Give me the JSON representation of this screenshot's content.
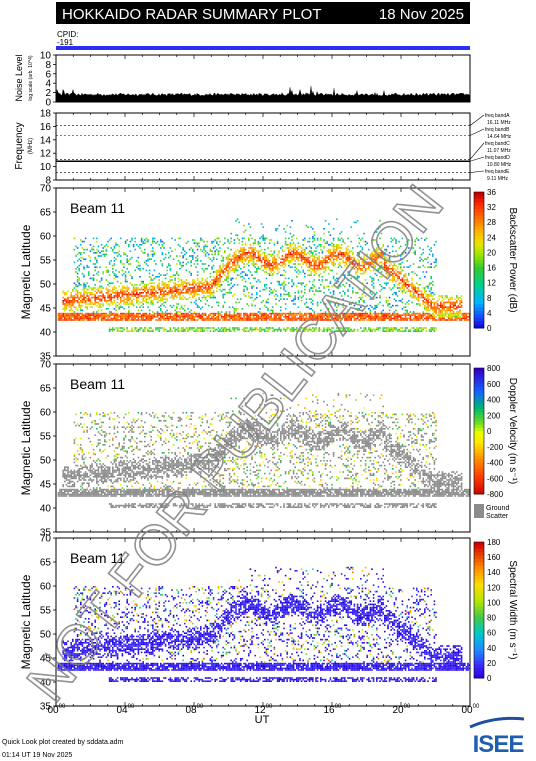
{
  "header": {
    "title": "HOKKAIDO RADAR SUMMARY PLOT",
    "date": "18 Nov 2025",
    "cpid_label": "CPID:",
    "cpid_value": "-191"
  },
  "footer": {
    "line1": "Quick Look plot created by sddata.adm",
    "line2": "01:14 UT 19 Nov 2025",
    "logo_text": "ISEE"
  },
  "watermark": "NOT FOR PUBLICATION",
  "colors": {
    "cpid_bar": "#2e2ef0",
    "ground_scatter": "#8c8c8c",
    "watermark": "#7f7f7f"
  },
  "chart_data": [
    {
      "id": "noise",
      "type": "bar",
      "ylabel": "Noise Level",
      "ylabel_sub": "log scale (arb. 10^4)",
      "ylim": [
        0,
        10
      ],
      "yticks": [
        "10",
        "8",
        "6",
        "4",
        "2",
        "0"
      ],
      "description_levels": {
        "baseline": 1.3,
        "late_peaks": 4.2
      }
    },
    {
      "id": "frequency",
      "type": "line",
      "ylabel": "Frequency",
      "ylabel_sub": "(MHz)",
      "ylim": [
        8,
        18
      ],
      "yticks": [
        "18",
        "16",
        "14",
        "12",
        "10",
        "8"
      ],
      "series": [
        {
          "values": [
            10.8
          ]
        }
      ],
      "bands": [
        {
          "label": "freq bandA",
          "value": "16.11 MHz",
          "y": 16.11
        },
        {
          "label": "freq bandB",
          "value": "14.64 MHz",
          "y": 14.64
        },
        {
          "label": "freq bandC",
          "value": "11.07 MHz",
          "y": 11.07
        },
        {
          "label": "freq bandD",
          "value": "10.80 MHz",
          "y": 10.8
        },
        {
          "label": "freq bandE",
          "value": "9.11 MHz",
          "y": 9.11
        }
      ]
    },
    {
      "id": "power",
      "type": "heatmap",
      "beam_label": "Beam 11",
      "ylabel": "Magnetic Latitude",
      "ylim": [
        35,
        70
      ],
      "yticks": [
        "70",
        "65",
        "60",
        "55",
        "50",
        "45",
        "40",
        "35"
      ],
      "colorbar_label": "Backscatter Power (dB)",
      "colorbar_ticks": [
        "36",
        "32",
        "28",
        "24",
        "20",
        "16",
        "12",
        "8",
        "4",
        "0"
      ],
      "crange": [
        0,
        36
      ]
    },
    {
      "id": "velocity",
      "type": "heatmap",
      "beam_label": "Beam 11",
      "ylabel": "Magnetic Latitude",
      "ylim": [
        35,
        70
      ],
      "yticks": [
        "70",
        "65",
        "60",
        "55",
        "50",
        "45",
        "40",
        "35"
      ],
      "colorbar_label": "Doppler Velocity (m s⁻¹)",
      "colorbar_ticks": [
        "800",
        "600",
        "400",
        "200",
        "0",
        "-200",
        "-400",
        "-600",
        "-800"
      ],
      "crange": [
        -800,
        800
      ],
      "ground_label": "Ground",
      "ground_label2": "Scatter"
    },
    {
      "id": "width",
      "type": "heatmap",
      "beam_label": "Beam 11",
      "ylabel": "Magnetic Latitude",
      "ylim": [
        35,
        70
      ],
      "yticks": [
        "70",
        "65",
        "60",
        "55",
        "50",
        "45",
        "40",
        "35"
      ],
      "colorbar_label": "Spectral Width (m s⁻¹)",
      "colorbar_ticks": [
        "180",
        "160",
        "140",
        "120",
        "100",
        "80",
        "60",
        "40",
        "20",
        "0"
      ],
      "crange": [
        0,
        180
      ]
    }
  ],
  "time_axis": {
    "label": "UT",
    "range_hours": [
      0,
      24
    ],
    "ticks": [
      {
        "h": 0,
        "text": "00",
        "sup": "00"
      },
      {
        "h": 4,
        "text": "04",
        "sup": "00"
      },
      {
        "h": 8,
        "text": "08",
        "sup": "00"
      },
      {
        "h": 12,
        "text": "12",
        "sup": "00"
      },
      {
        "h": 16,
        "text": "16",
        "sup": "00"
      },
      {
        "h": 20,
        "text": "20",
        "sup": "00"
      },
      {
        "h": 24,
        "text": "00",
        "sup": "00"
      }
    ]
  }
}
